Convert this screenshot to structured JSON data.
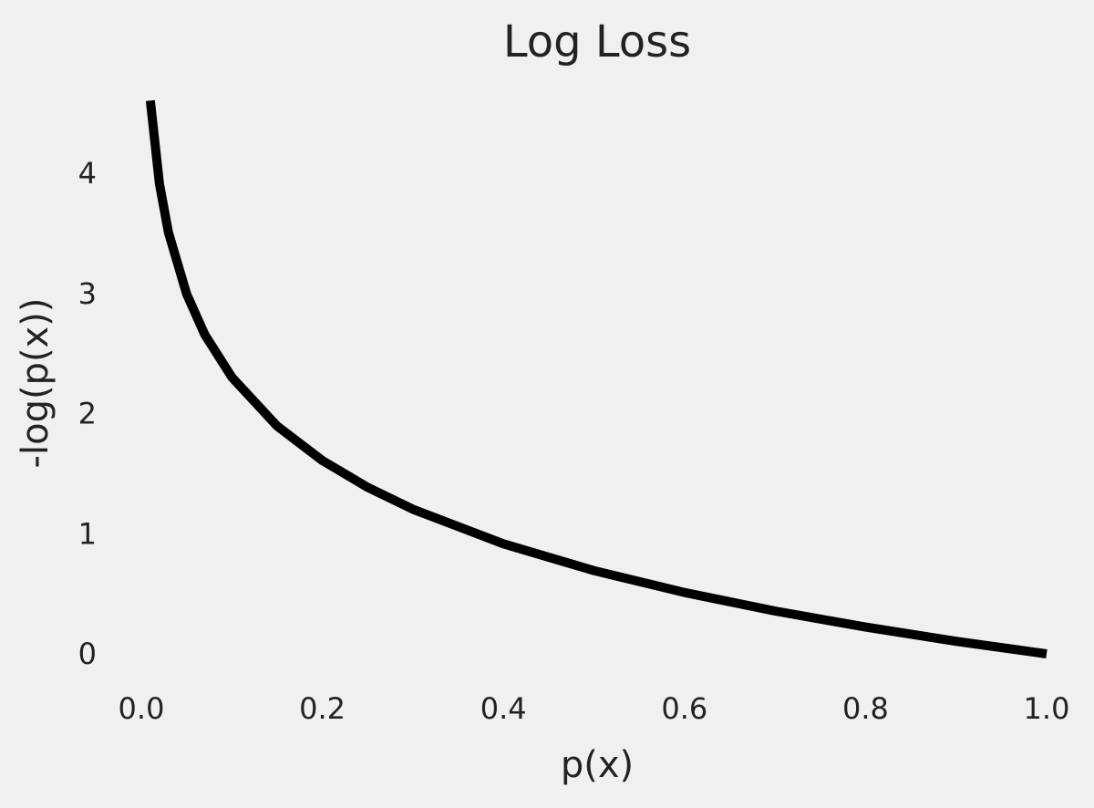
{
  "chart_data": {
    "type": "line",
    "title": "Log Loss",
    "xlabel": "p(x)",
    "ylabel": "-log(p(x))",
    "xlim": [
      0.0,
      1.0
    ],
    "ylim": [
      0,
      4.6
    ],
    "xticks": [
      "0.0",
      "0.2",
      "0.4",
      "0.6",
      "0.8",
      "1.0"
    ],
    "yticks": [
      "0",
      "1",
      "2",
      "3",
      "4"
    ],
    "grid": false,
    "legend": "none",
    "line_color": "#000000",
    "background_color": "#f0f0f0",
    "series": [
      {
        "x": [
          0.01,
          0.02,
          0.03,
          0.05,
          0.07,
          0.1,
          0.15,
          0.2,
          0.25,
          0.3,
          0.4,
          0.5,
          0.6,
          0.7,
          0.8,
          0.9,
          1.0
        ],
        "y": [
          4.605,
          3.912,
          3.507,
          2.996,
          2.659,
          2.303,
          1.897,
          1.609,
          1.386,
          1.204,
          0.916,
          0.693,
          0.511,
          0.357,
          0.223,
          0.105,
          0.0
        ]
      }
    ]
  }
}
